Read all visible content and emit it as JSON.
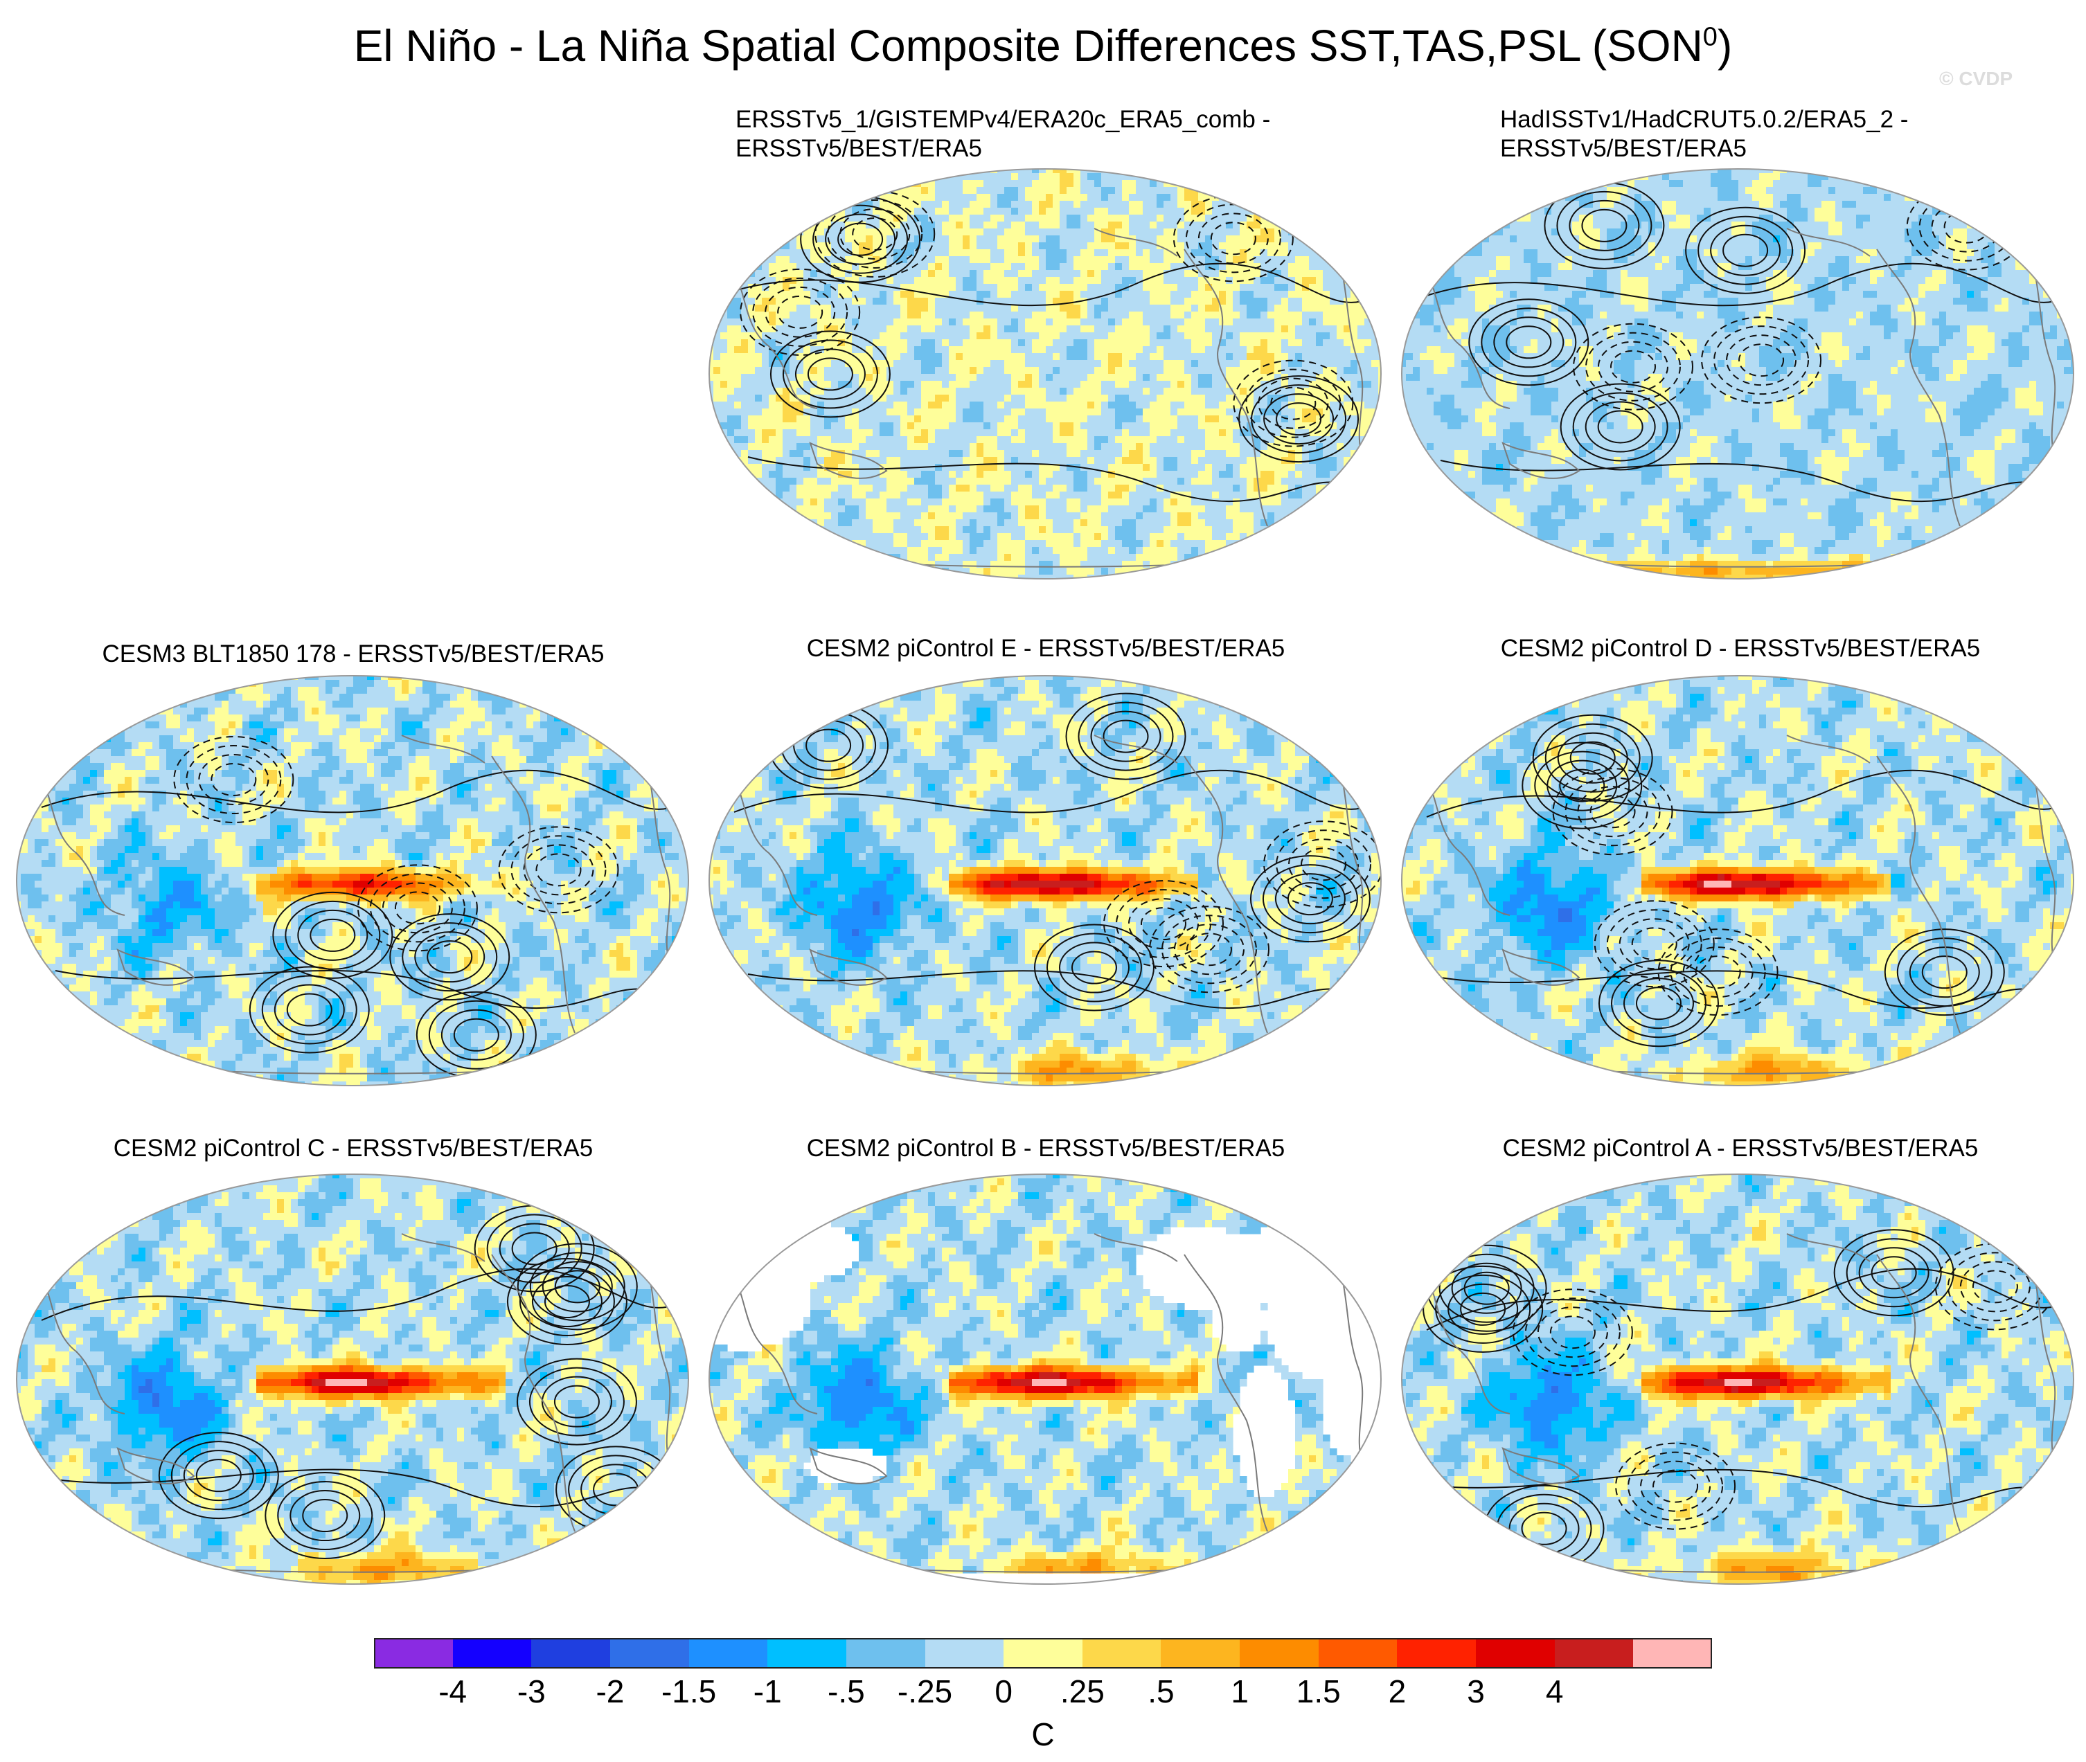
{
  "title": {
    "main": "El Niño - La Niña Spatial Composite Differences SST,TAS,PSL (SON",
    "superscript": "0",
    "suffix": ")"
  },
  "watermark": "© CVDP",
  "panels": [
    {
      "id": "obs1",
      "title": "ERSSTv5_1/GISTEMPv4/ERA20c_ERA5_comb -\nERSSTv5/BEST/ERA5",
      "land_masked": false,
      "pattern": "obs_weak"
    },
    {
      "id": "obs2",
      "title": "HadISSTv1/HadCRUT5.0.2/ERA5_2 -\nERSSTv5/BEST/ERA5",
      "land_masked": false,
      "pattern": "obs_mixed"
    },
    {
      "id": "cesm3",
      "title": "CESM3 BLT1850 178 - ERSSTv5/BEST/ERA5",
      "land_masked": false,
      "pattern": "model_moderate"
    },
    {
      "id": "cesm2e",
      "title": "CESM2 piControl E - ERSSTv5/BEST/ERA5",
      "land_masked": false,
      "pattern": "model_strong"
    },
    {
      "id": "cesm2d",
      "title": "CESM2 piControl D - ERSSTv5/BEST/ERA5",
      "land_masked": false,
      "pattern": "model_strong"
    },
    {
      "id": "cesm2c",
      "title": "CESM2 piControl C - ERSSTv5/BEST/ERA5",
      "land_masked": false,
      "pattern": "model_strong"
    },
    {
      "id": "cesm2b",
      "title": "CESM2 piControl B - ERSSTv5/BEST/ERA5",
      "land_masked": true,
      "pattern": "model_ocean_only"
    },
    {
      "id": "cesm2a",
      "title": "CESM2 piControl A - ERSSTv5/BEST/ERA5",
      "land_masked": false,
      "pattern": "model_strong"
    }
  ],
  "colorbar": {
    "colors": [
      "#8a2be2",
      "#1400ff",
      "#1f3fe0",
      "#2f6fe8",
      "#1e90ff",
      "#00bfff",
      "#6ec0ee",
      "#b4dcf4",
      "#fefe9a",
      "#fdd84a",
      "#fdb51f",
      "#fd8c00",
      "#ff5a00",
      "#ff2200",
      "#e00000",
      "#c81e1e",
      "#ffb6b6"
    ],
    "tick_labels": [
      "-4",
      "-3",
      "-2",
      "-1.5",
      "-1",
      "-.5",
      "-.25",
      "0",
      ".25",
      ".5",
      "1",
      "1.5",
      "2",
      "3",
      "4"
    ],
    "unit": "C"
  }
}
